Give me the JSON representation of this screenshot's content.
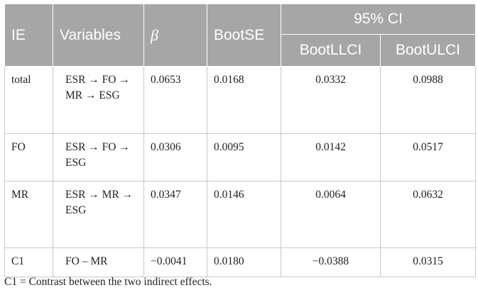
{
  "table": {
    "headers": {
      "ie": "IE",
      "variables": "Variables",
      "beta": "β",
      "bootse": "BootSE",
      "ci": "95% CI",
      "bootllci": "BootLLCI",
      "bootulci": "BootULCI"
    },
    "rows": [
      {
        "ie": "total",
        "variables": "ESR → FO → MR → ESG",
        "beta": "0.0653",
        "bootse": "0.0168",
        "bootllci": "0.0332",
        "bootulci": "0.0988"
      },
      {
        "ie": "FO",
        "variables": "ESR → FO → ESG",
        "beta": "0.0306",
        "bootse": "0.0095",
        "bootllci": "0.0142",
        "bootulci": "0.0517"
      },
      {
        "ie": "MR",
        "variables": "ESR → MR → ESG",
        "beta": "0.0347",
        "bootse": "0.0146",
        "bootllci": "0.0064",
        "bootulci": "0.0632"
      },
      {
        "ie": "C1",
        "variables": "FO – MR",
        "beta": "−0.0041",
        "bootse": "0.0180",
        "bootllci": "−0.0388",
        "bootulci": "0.0315"
      }
    ]
  },
  "footnote": "C1 = Contrast between the two indirect effects."
}
